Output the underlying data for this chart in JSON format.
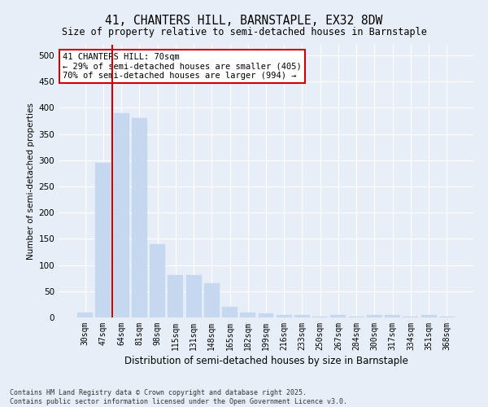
{
  "title": "41, CHANTERS HILL, BARNSTAPLE, EX32 8DW",
  "subtitle": "Size of property relative to semi-detached houses in Barnstaple",
  "xlabel": "Distribution of semi-detached houses by size in Barnstaple",
  "ylabel": "Number of semi-detached properties",
  "categories": [
    "30sqm",
    "47sqm",
    "64sqm",
    "81sqm",
    "98sqm",
    "115sqm",
    "131sqm",
    "148sqm",
    "165sqm",
    "182sqm",
    "199sqm",
    "216sqm",
    "233sqm",
    "250sqm",
    "267sqm",
    "284sqm",
    "300sqm",
    "317sqm",
    "334sqm",
    "351sqm",
    "368sqm"
  ],
  "values": [
    10,
    295,
    390,
    380,
    140,
    80,
    80,
    65,
    20,
    10,
    8,
    5,
    5,
    1,
    5,
    1,
    5,
    5,
    1,
    4,
    2
  ],
  "bar_color": "#c5d8ef",
  "bar_edge_color": "#c5d8ef",
  "vline_color": "#cc0000",
  "vline_x_index": 1.5,
  "annotation_text": "41 CHANTERS HILL: 70sqm\n← 29% of semi-detached houses are smaller (405)\n70% of semi-detached houses are larger (994) →",
  "annotation_box_facecolor": "#ffffff",
  "annotation_box_edgecolor": "#cc0000",
  "ylim": [
    0,
    520
  ],
  "yticks": [
    0,
    50,
    100,
    150,
    200,
    250,
    300,
    350,
    400,
    450,
    500
  ],
  "background_color": "#e8eef8",
  "grid_color": "#ffffff",
  "footer": "Contains HM Land Registry data © Crown copyright and database right 2025.\nContains public sector information licensed under the Open Government Licence v3.0."
}
